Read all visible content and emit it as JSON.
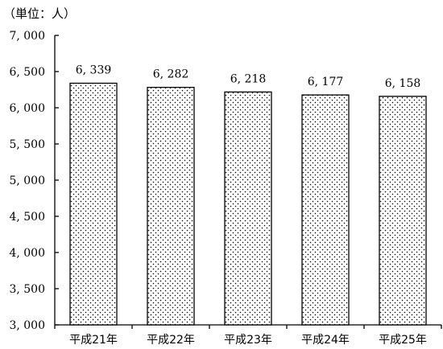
{
  "chart_data": {
    "type": "bar",
    "unit_label": "（単位：人）",
    "categories": [
      "平成21年",
      "平成22年",
      "平成23年",
      "平成24年",
      "平成25年"
    ],
    "values": [
      6339,
      6282,
      6218,
      6177,
      6158
    ],
    "value_labels": [
      "6, 339",
      "6, 282",
      "6, 218",
      "6, 177",
      "6, 158"
    ],
    "ylim": [
      3000,
      7000
    ],
    "yticks": [
      3000,
      3500,
      4000,
      4500,
      5000,
      5500,
      6000,
      6500,
      7000
    ],
    "ytick_labels": [
      "3, 000",
      "3, 500",
      "4, 000",
      "4, 500",
      "5, 000",
      "5, 500",
      "6, 000",
      "6, 500",
      "7, 000"
    ],
    "title": "",
    "xlabel": "",
    "ylabel": "",
    "grid": false,
    "bar_fill": "dotted",
    "colors": {
      "bar_stroke": "#000000",
      "dot": "#000000",
      "background": "#ffffff"
    }
  }
}
